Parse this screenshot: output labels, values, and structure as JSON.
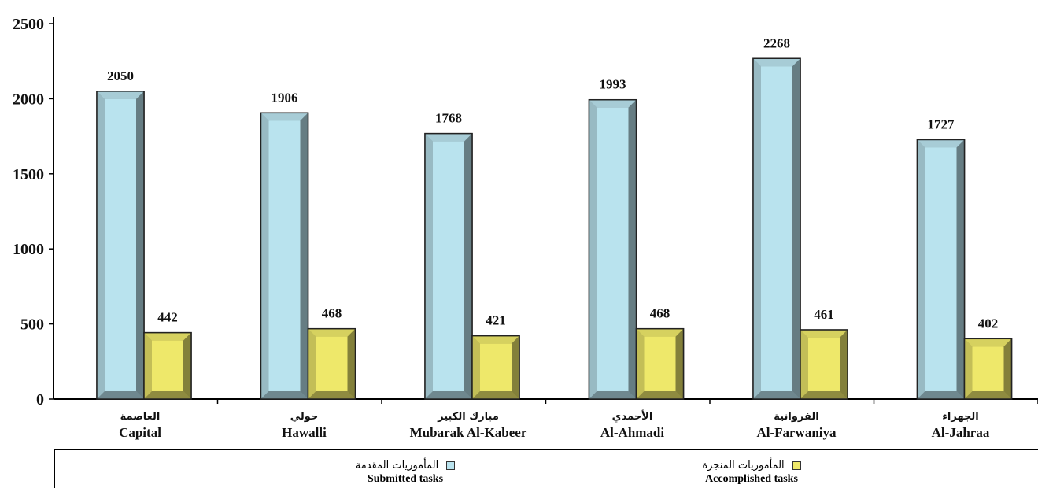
{
  "chart_data": {
    "type": "bar",
    "categories": [
      {
        "ar": "العاصمة",
        "en": "Capital"
      },
      {
        "ar": "حولي",
        "en": "Hawalli"
      },
      {
        "ar": "مبارك الكبير",
        "en": "Mubarak Al-Kabeer"
      },
      {
        "ar": "الأحمدي",
        "en": "Al-Ahmadi"
      },
      {
        "ar": "الفروانية",
        "en": "Al-Farwaniya"
      },
      {
        "ar": "الجهراء",
        "en": "Al-Jahraa"
      }
    ],
    "series": [
      {
        "name_ar": "المأموريات المقدمة",
        "name_en": "Submitted tasks",
        "color": "#b9e3ee",
        "values": [
          2050,
          1906,
          1768,
          1993,
          2268,
          1727
        ]
      },
      {
        "name_ar": "المأموريات المنجزة",
        "name_en": "Accomplished tasks",
        "color": "#eee86a",
        "values": [
          442,
          468,
          421,
          468,
          461,
          402
        ]
      }
    ],
    "ylim": [
      0,
      2500
    ],
    "yticks": [
      0,
      500,
      1000,
      1500,
      2000,
      2500
    ],
    "grid": false,
    "legend_position": "bottom"
  },
  "legend": {
    "submitted_ar": "المأموريات المقدمة",
    "submitted_en": "Submitted tasks",
    "accomplished_ar": "المأموريات المنجزة",
    "accomplished_en": "Accomplished tasks"
  }
}
